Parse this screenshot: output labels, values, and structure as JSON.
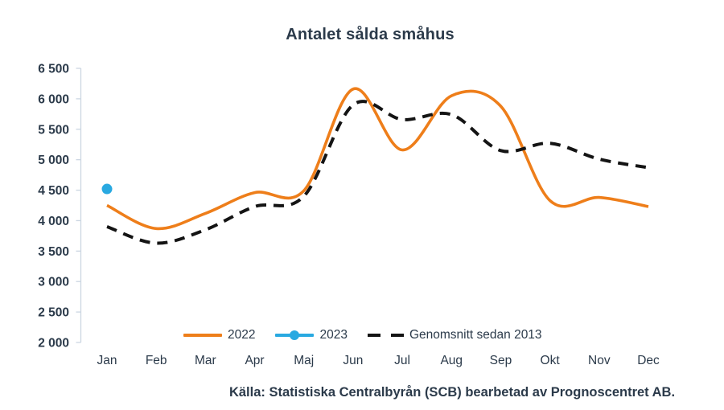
{
  "chart_data": {
    "type": "line",
    "title": "Antalet sålda småhus",
    "categories": [
      "Jan",
      "Feb",
      "Mar",
      "Apr",
      "Maj",
      "Jun",
      "Jul",
      "Aug",
      "Sep",
      "Okt",
      "Nov",
      "Dec"
    ],
    "series": [
      {
        "name": "2022",
        "type": "line",
        "style": "solid",
        "color": "#EE7E1A",
        "values": [
          4250,
          3870,
          4120,
          4460,
          4490,
          6160,
          5160,
          6050,
          5880,
          4330,
          4380,
          4230
        ]
      },
      {
        "name": "2023",
        "type": "point",
        "color": "#29A9E1",
        "values": [
          4520,
          null,
          null,
          null,
          null,
          null,
          null,
          null,
          null,
          null,
          null,
          null
        ]
      },
      {
        "name": "Genomsnitt sedan 2013",
        "type": "line",
        "style": "dashed",
        "color": "#141414",
        "values": [
          3900,
          3630,
          3850,
          4230,
          4400,
          5900,
          5660,
          5740,
          5150,
          5270,
          5010,
          4870
        ]
      }
    ],
    "ylim": [
      2000,
      6500
    ],
    "ytick_step": 500,
    "grid": false,
    "legend_position": "bottom",
    "axis_color": "#CBD6E2",
    "text_color": "#2B3A4A",
    "source": "Källa: Statistiska Centralbyrån (SCB) bearbetad av Prognoscentret AB."
  }
}
